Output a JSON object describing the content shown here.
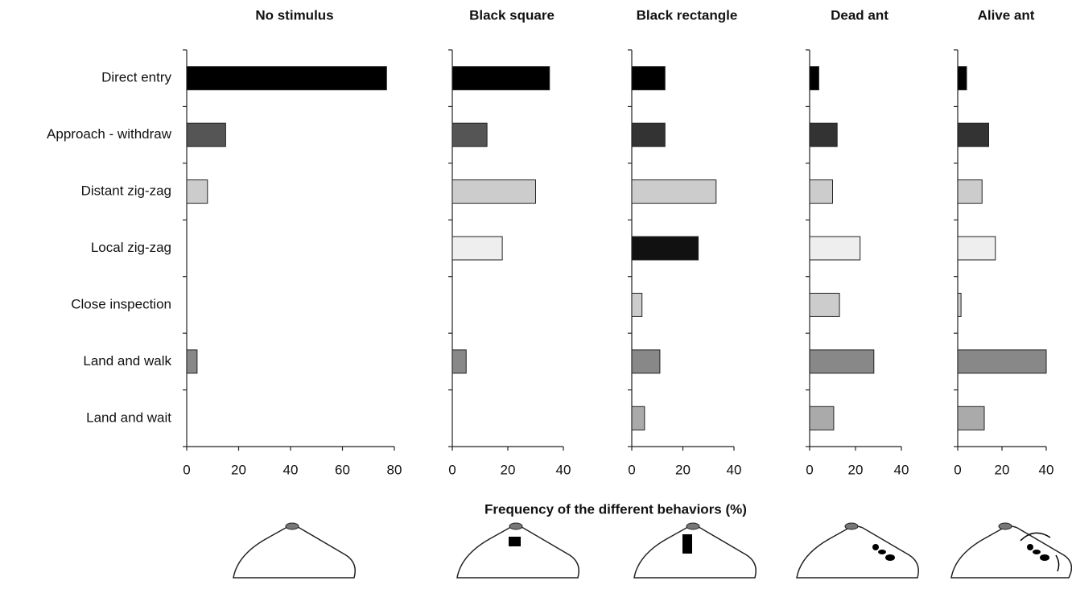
{
  "chart_data": [
    {
      "type": "bar",
      "orientation": "horizontal",
      "title": "No stimulus",
      "categories": [
        "Direct entry",
        "Approach - withdraw",
        "Distant zig-zag",
        "Local zig-zag",
        "Close inspection",
        "Land and walk",
        "Land and wait"
      ],
      "values": [
        77,
        15,
        8,
        0,
        0,
        4,
        0
      ],
      "colors": [
        "#000000",
        "#555555",
        "#cccccc",
        "#eeeeee",
        "#cccccc",
        "#888888",
        "#aaaaaa"
      ],
      "xlim": [
        0,
        80
      ],
      "xticks": [
        0,
        20,
        40,
        60,
        80
      ],
      "xlabel": "Frequency of the different behaviors (%)"
    },
    {
      "type": "bar",
      "orientation": "horizontal",
      "title": "Black square",
      "values": [
        35,
        12.5,
        30,
        18,
        0,
        5,
        0
      ],
      "colors": [
        "#000000",
        "#555555",
        "#cccccc",
        "#eeeeee",
        "#cccccc",
        "#888888",
        "#aaaaaa"
      ],
      "xlim": [
        0,
        40
      ],
      "xticks": [
        0,
        20,
        40
      ]
    },
    {
      "type": "bar",
      "orientation": "horizontal",
      "title": "Black rectangle",
      "values": [
        13,
        13,
        33,
        26,
        4,
        11,
        5
      ],
      "colors": [
        "#000000",
        "#333333",
        "#cccccc",
        "#111111",
        "#cccccc",
        "#888888",
        "#aaaaaa"
      ],
      "xlim": [
        0,
        40
      ],
      "xticks": [
        0,
        20,
        40
      ]
    },
    {
      "type": "bar",
      "orientation": "horizontal",
      "title": "Dead ant",
      "values": [
        4,
        12,
        10,
        22,
        13,
        28,
        10.5
      ],
      "colors": [
        "#000000",
        "#333333",
        "#cccccc",
        "#eeeeee",
        "#cccccc",
        "#888888",
        "#aaaaaa"
      ],
      "xlim": [
        0,
        40
      ],
      "xticks": [
        0,
        20,
        40
      ]
    },
    {
      "type": "bar",
      "orientation": "horizontal",
      "title": "Alive ant",
      "values": [
        4,
        14,
        11,
        17,
        1.5,
        40,
        12
      ],
      "colors": [
        "#000000",
        "#333333",
        "#cccccc",
        "#eeeeee",
        "#cccccc",
        "#888888",
        "#aaaaaa"
      ],
      "xlim": [
        0,
        40
      ],
      "xticks": [
        0,
        20,
        40
      ]
    }
  ]
}
